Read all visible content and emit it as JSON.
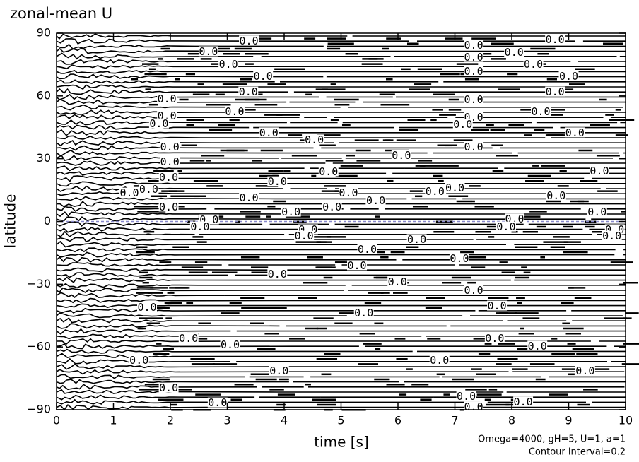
{
  "chart_data": {
    "type": "contour",
    "title": "zonal-mean U",
    "x_label": "time [s]",
    "y_label": "latitude",
    "notes": [
      "Omega=4000, gH=5, U=1, a=1",
      "Contour interval=0.2"
    ],
    "xlim": [
      0,
      10
    ],
    "xticks": [
      0,
      1,
      2,
      3,
      4,
      5,
      6,
      7,
      8,
      9,
      10
    ],
    "ylim": [
      -90,
      90
    ],
    "yticks": [
      {
        "value": -90,
        "label": "−90"
      },
      {
        "value": -60,
        "label": "−60"
      },
      {
        "value": -30,
        "label": "−30"
      },
      0,
      30,
      60,
      90
    ],
    "line_color": "#000000",
    "zero_line_color": "#8888cc",
    "contour_labels": [
      {
        "x": 3.38,
        "y": 86.5,
        "label": "0.0"
      },
      {
        "x": 2.67,
        "y": 81.4,
        "label": "0.0"
      },
      {
        "x": 7.33,
        "y": 84.4,
        "label": "0.0"
      },
      {
        "x": 8.76,
        "y": 87.1,
        "label": "0.0"
      },
      {
        "x": 8.04,
        "y": 81,
        "label": "0.0"
      },
      {
        "x": 3.02,
        "y": 75.3,
        "label": "0.0"
      },
      {
        "x": 7.33,
        "y": 78.7,
        "label": "0.0"
      },
      {
        "x": 8.38,
        "y": 75.3,
        "label": "0.0"
      },
      {
        "x": 3.63,
        "y": 69.6,
        "label": "0.0"
      },
      {
        "x": 9.0,
        "y": 69.6,
        "label": "0.0"
      },
      {
        "x": 7.33,
        "y": 71.9,
        "label": "0.0"
      },
      {
        "x": 3.37,
        "y": 62.1,
        "label": "0.0"
      },
      {
        "x": 8.76,
        "y": 62.1,
        "label": "0.0"
      },
      {
        "x": 1.94,
        "y": 58.8,
        "label": "0.0"
      },
      {
        "x": 7.33,
        "y": 58.4,
        "label": "0.0"
      },
      {
        "x": 3.13,
        "y": 52.7,
        "label": "0.0"
      },
      {
        "x": 8.51,
        "y": 52.7,
        "label": "0.0"
      },
      {
        "x": 1.94,
        "y": 50.7,
        "label": "0.0"
      },
      {
        "x": 7.33,
        "y": 50,
        "label": "0.0"
      },
      {
        "x": 1.8,
        "y": 46.9,
        "label": "0.0"
      },
      {
        "x": 7.14,
        "y": 46.6,
        "label": "0.0"
      },
      {
        "x": 3.73,
        "y": 42.6,
        "label": "0.0"
      },
      {
        "x": 9.11,
        "y": 42.6,
        "label": "0.0"
      },
      {
        "x": 4.53,
        "y": 39.2,
        "label": "0.0"
      },
      {
        "x": 1.99,
        "y": 35.8,
        "label": "0.0"
      },
      {
        "x": 7.33,
        "y": 35.8,
        "label": "0.0"
      },
      {
        "x": 6.06,
        "y": 31.7,
        "label": "0.0"
      },
      {
        "x": 1.99,
        "y": 28.7,
        "label": "0.0"
      },
      {
        "x": 9.54,
        "y": 24.3,
        "label": "0.0"
      },
      {
        "x": 4.78,
        "y": 24,
        "label": "0.0"
      },
      {
        "x": 1.97,
        "y": 21.3,
        "label": "0.0"
      },
      {
        "x": 3.88,
        "y": 19.2,
        "label": "0.0"
      },
      {
        "x": 1.28,
        "y": 13.8,
        "label": "0.0"
      },
      {
        "x": 1.62,
        "y": 15.5,
        "label": "0.0"
      },
      {
        "x": 5.13,
        "y": 13.8,
        "label": "0.0"
      },
      {
        "x": 5.61,
        "y": 10.1,
        "label": "0.0"
      },
      {
        "x": 6.65,
        "y": 14.5,
        "label": "0.0"
      },
      {
        "x": 7.0,
        "y": 16.2,
        "label": "0.0"
      },
      {
        "x": 8.78,
        "y": 12.5,
        "label": "0.0"
      },
      {
        "x": 3.38,
        "y": 11.5,
        "label": "0.0"
      },
      {
        "x": 4.84,
        "y": 7.1,
        "label": "0.0"
      },
      {
        "x": 4.12,
        "y": 4.7,
        "label": "0.0"
      },
      {
        "x": 9.5,
        "y": 4.7,
        "label": "0.0"
      },
      {
        "x": 1.97,
        "y": 7.1,
        "label": "0.0"
      },
      {
        "x": 2.68,
        "y": 1,
        "label": "0.0"
      },
      {
        "x": 2.52,
        "y": -2.4,
        "label": "0.0"
      },
      {
        "x": 8.05,
        "y": 1.4,
        "label": "0.0"
      },
      {
        "x": 7.9,
        "y": -2.4,
        "label": "0.0"
      },
      {
        "x": 9.81,
        "y": -3.7,
        "label": "0.0"
      },
      {
        "x": 9.76,
        "y": -6.8,
        "label": "0.0"
      },
      {
        "x": 4.42,
        "y": -3.7,
        "label": "0.0"
      },
      {
        "x": 4.35,
        "y": -6.8,
        "label": "0.0"
      },
      {
        "x": 6.33,
        "y": -8.4,
        "label": "0.0"
      },
      {
        "x": 5.46,
        "y": -13.2,
        "label": "0.0"
      },
      {
        "x": 7.08,
        "y": -17.6,
        "label": "0.0"
      },
      {
        "x": 5.28,
        "y": -20.9,
        "label": "0.0"
      },
      {
        "x": 3.88,
        "y": -25,
        "label": "0.0"
      },
      {
        "x": 5.99,
        "y": -28.7,
        "label": "0.0"
      },
      {
        "x": 7.33,
        "y": -32.8,
        "label": "0.0"
      },
      {
        "x": 7.74,
        "y": -40.2,
        "label": "0.0"
      },
      {
        "x": 5.4,
        "y": -43.6,
        "label": "0.0"
      },
      {
        "x": 1.59,
        "y": -40.9,
        "label": "0.0"
      },
      {
        "x": 2.32,
        "y": -55.7,
        "label": "0.0"
      },
      {
        "x": 7.7,
        "y": -55.7,
        "label": "0.0"
      },
      {
        "x": 3.05,
        "y": -58.8,
        "label": "0.0"
      },
      {
        "x": 8.45,
        "y": -59.4,
        "label": "0.0"
      },
      {
        "x": 1.45,
        "y": -66.2,
        "label": "0.0"
      },
      {
        "x": 6.73,
        "y": -66.2,
        "label": "0.0"
      },
      {
        "x": 3.91,
        "y": -71.3,
        "label": "0.0"
      },
      {
        "x": 9.29,
        "y": -71.3,
        "label": "0.0"
      },
      {
        "x": 1.97,
        "y": -79.4,
        "label": "0.0"
      },
      {
        "x": 7.2,
        "y": -83.4,
        "label": "0.0"
      },
      {
        "x": 8.2,
        "y": -86.1,
        "label": "0.0"
      },
      {
        "x": 2.83,
        "y": -86.5,
        "label": "0.0"
      },
      {
        "x": 7.33,
        "y": -88.5,
        "label": "0.0"
      }
    ]
  }
}
